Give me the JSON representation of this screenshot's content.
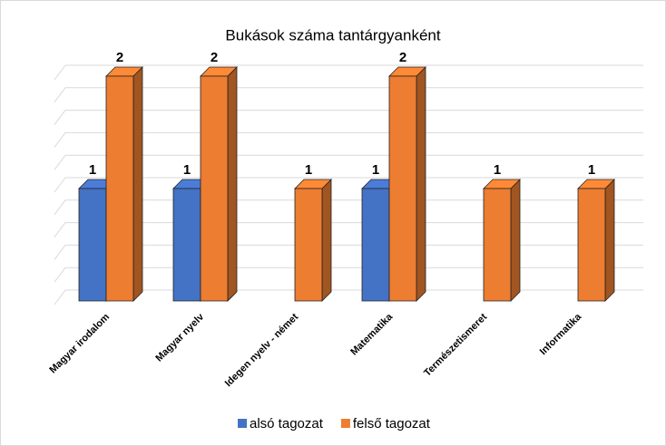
{
  "chart_data": {
    "type": "bar3d",
    "title": "Bukások száma tantárgyanként",
    "categories": [
      "Magyar irodalom",
      "Magyar nyelv",
      "Idegen nyelv - német",
      "Matematika",
      "Természetismeret",
      "Informatika"
    ],
    "series": [
      {
        "name": "alsó tagozat",
        "color": "#4472c4",
        "values": [
          1,
          1,
          null,
          1,
          null,
          null
        ]
      },
      {
        "name": "felső tagozat",
        "color": "#ed7d31",
        "values": [
          2,
          2,
          1,
          2,
          1,
          1
        ]
      }
    ],
    "ylim": [
      0,
      2
    ],
    "yticks": [
      0,
      0.2,
      0.4,
      0.6,
      0.8,
      1,
      1.2,
      1.4,
      1.6,
      1.8,
      2
    ],
    "grid": true
  }
}
